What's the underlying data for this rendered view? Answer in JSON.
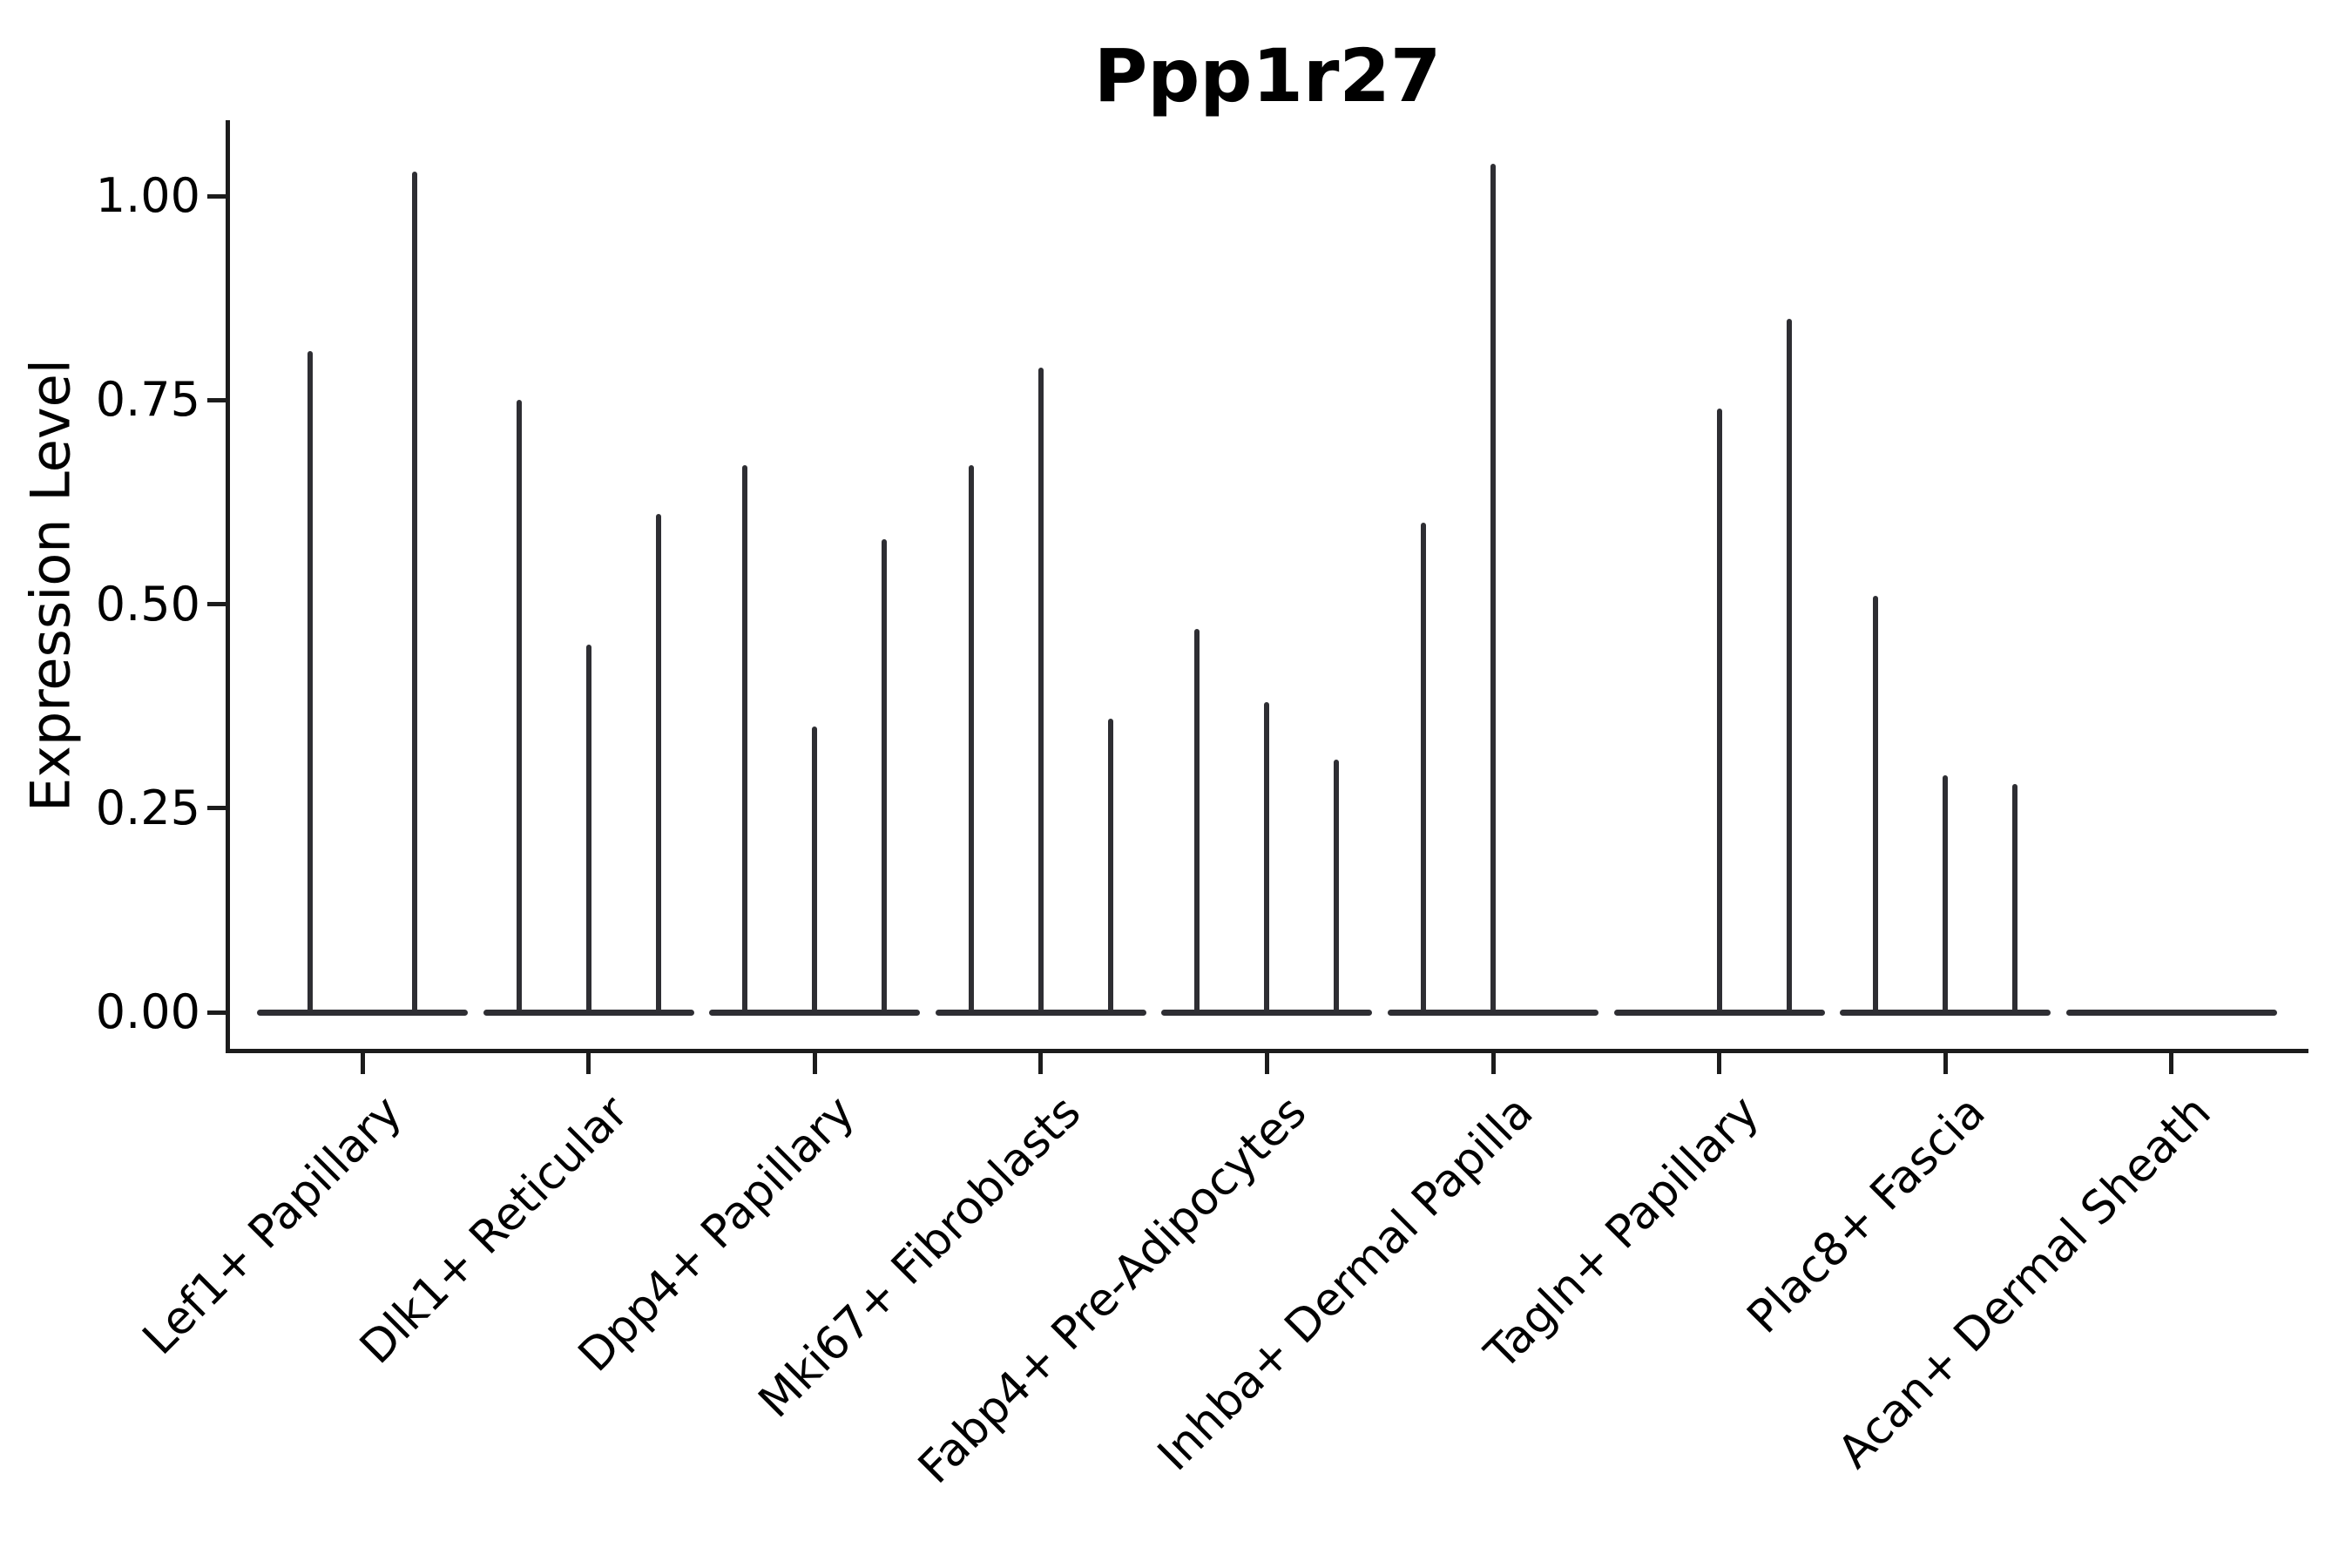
{
  "figure": {
    "title": "Ppp1r27",
    "background_color": "#ffffff",
    "ink_color": "#2e2e33",
    "spine_color": "#1c1c1c"
  },
  "chart_data": {
    "type": "violin",
    "title": "Ppp1r27",
    "xlabel": "",
    "ylabel": "Expression Level",
    "grid": false,
    "legend": "none",
    "ylim": [
      -0.05,
      1.09
    ],
    "yticks": [
      "0.00",
      "0.25",
      "0.50",
      "0.75",
      "1.00"
    ],
    "ytick_values": [
      0.0,
      0.25,
      0.5,
      0.75,
      1.0
    ],
    "categories": [
      "Lef1+ Papillary",
      "Dlk1+ Reticular",
      "Dpp4+ Papillary",
      "Mki67+ Fibroblasts",
      "Fabp4+ Pre-Adipocytes",
      "Inhba+ Dermal Papilla",
      "Tagln+ Papillary",
      "Plac8+ Fascia",
      "Acan+ Dermal Sheath"
    ],
    "groups": [
      {
        "category": "Lef1+ Papillary",
        "violins": [
          {
            "offset": -60,
            "max": 0.81
          },
          {
            "offset": 60,
            "max": 1.03
          }
        ]
      },
      {
        "category": "Dlk1+ Reticular",
        "violins": [
          {
            "offset": -80,
            "max": 0.75
          },
          {
            "offset": 0,
            "max": 0.45
          },
          {
            "offset": 80,
            "max": 0.61
          }
        ]
      },
      {
        "category": "Dpp4+ Papillary",
        "violins": [
          {
            "offset": -80,
            "max": 0.67
          },
          {
            "offset": 0,
            "max": 0.35
          },
          {
            "offset": 80,
            "max": 0.58
          }
        ]
      },
      {
        "category": "Mki67+ Fibroblasts",
        "violins": [
          {
            "offset": -80,
            "max": 0.67
          },
          {
            "offset": 0,
            "max": 0.79
          },
          {
            "offset": 80,
            "max": 0.36
          }
        ]
      },
      {
        "category": "Fabp4+ Pre-Adipocytes",
        "violins": [
          {
            "offset": -80,
            "max": 0.47
          },
          {
            "offset": 0,
            "max": 0.38
          },
          {
            "offset": 80,
            "max": 0.31
          }
        ]
      },
      {
        "category": "Inhba+ Dermal Papilla",
        "violins": [
          {
            "offset": -80,
            "max": 0.6
          },
          {
            "offset": 0,
            "max": 1.04
          }
        ]
      },
      {
        "category": "Tagln+ Papillary",
        "violins": [
          {
            "offset": 0,
            "max": 0.74
          },
          {
            "offset": 80,
            "max": 0.85
          }
        ]
      },
      {
        "category": "Plac8+ Fascia",
        "violins": [
          {
            "offset": -80,
            "max": 0.51
          },
          {
            "offset": 0,
            "max": 0.29
          },
          {
            "offset": 80,
            "max": 0.28
          }
        ]
      },
      {
        "category": "Acan+ Dermal Sheath",
        "violins": []
      }
    ],
    "baseline_half_width": 121
  }
}
